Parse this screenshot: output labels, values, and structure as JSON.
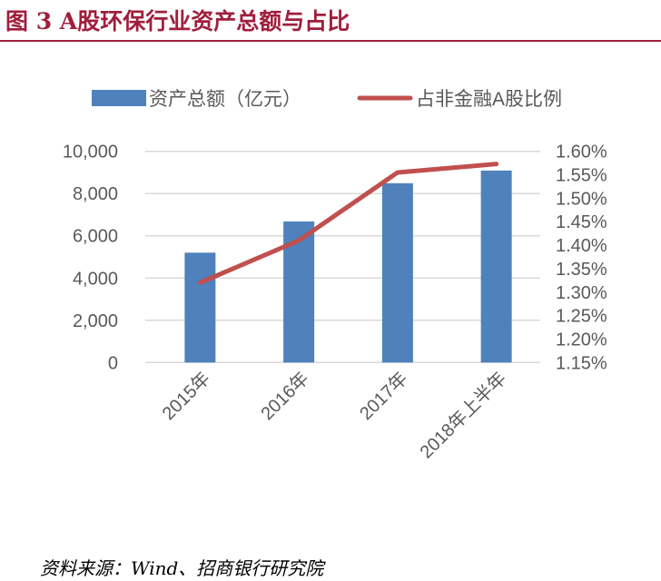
{
  "title": "图  3 A股环保行业资产总额与占比",
  "source": "资料来源：Wind、招商银行研究院",
  "chart_data": {
    "type": "bar+line",
    "categories": [
      "2015年",
      "2016年",
      "2017年",
      "2018年上半年"
    ],
    "series": [
      {
        "name": "资产总额（亿元）",
        "type": "bar",
        "axis": "left",
        "color": "#4f81bd",
        "values": [
          5200,
          6680,
          8490,
          9090
        ]
      },
      {
        "name": "占非金融A股比例",
        "type": "line",
        "axis": "right",
        "color": "#c0504d",
        "values": [
          1.32,
          1.41,
          1.555,
          1.573
        ]
      }
    ],
    "y_left": {
      "ylim": [
        0,
        10000
      ],
      "ticks": [
        "0",
        "2,000",
        "4,000",
        "6,000",
        "8,000",
        "10,000"
      ]
    },
    "y_right": {
      "ylim": [
        1.15,
        1.6
      ],
      "ticks": [
        "1.15%",
        "1.20%",
        "1.25%",
        "1.30%",
        "1.35%",
        "1.40%",
        "1.45%",
        "1.50%",
        "1.55%",
        "1.60%"
      ]
    },
    "grid": true,
    "legend": "top"
  }
}
